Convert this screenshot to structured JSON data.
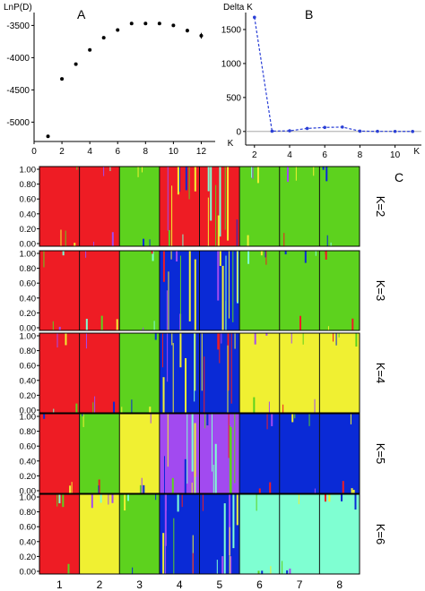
{
  "panel_labels": {
    "a": "A",
    "b": "B",
    "c": "C"
  },
  "colors": {
    "red": "#ee1c24",
    "green": "#5dd21e",
    "blue": "#0a2ad6",
    "yellow": "#f0f032",
    "purple": "#a24af0",
    "aqua": "#7fffd2",
    "axis": "#000000",
    "dk_line": "#2a3fd6",
    "zero_line": "#9a9a9a"
  },
  "chart_data": [
    {
      "type": "scatter",
      "panel": "A",
      "ylabel": "LnP(D)",
      "xlabel": "K",
      "xlim": [
        0,
        13
      ],
      "ylim": [
        -5300,
        -3300
      ],
      "x_ticks": [
        0,
        2,
        4,
        6,
        8,
        10,
        12
      ],
      "y_ticks": [
        -3500,
        -4000,
        -4500,
        -5000
      ],
      "x": [
        1,
        2,
        3,
        4,
        5,
        6,
        7,
        8,
        9,
        10,
        11,
        12
      ],
      "y": [
        -5220,
        -4330,
        -4100,
        -3880,
        -3690,
        -3570,
        -3470,
        -3470,
        -3470,
        -3500,
        -3580,
        -3660
      ],
      "error": [
        0,
        0,
        0,
        0,
        0,
        0,
        0,
        0,
        0,
        15,
        30,
        45
      ]
    },
    {
      "type": "line",
      "panel": "B",
      "ylabel": "Delta K",
      "xlabel": "K",
      "xlim": [
        1.5,
        11.5
      ],
      "ylim": [
        -200,
        1750
      ],
      "x_ticks": [
        2,
        4,
        6,
        8,
        10
      ],
      "y_ticks": [
        0,
        500,
        1000,
        1500
      ],
      "x": [
        2,
        3,
        4,
        5,
        6,
        7,
        8,
        9,
        10,
        11
      ],
      "y": [
        1680,
        5,
        10,
        45,
        60,
        65,
        5,
        2,
        1,
        0
      ]
    },
    {
      "type": "bar",
      "panel": "C",
      "subtype": "stacked-admixture",
      "y_ticks": [
        "1.00",
        "0.80",
        "0.60",
        "0.40",
        "0.20",
        "0.00"
      ],
      "populations": [
        "1",
        "2",
        "3",
        "4",
        "5",
        "6",
        "7",
        "8"
      ],
      "rows": [
        {
          "label": "K=2",
          "colors": [
            "red",
            "red",
            "green",
            "red",
            "red",
            "green",
            "green",
            "green"
          ]
        },
        {
          "label": "K=3",
          "colors": [
            "red",
            "red",
            "green",
            "blue",
            "blue",
            "green",
            "green",
            "green"
          ]
        },
        {
          "label": "K=4",
          "colors": [
            "red",
            "red",
            "green",
            "blue",
            "blue",
            "yellow",
            "yellow",
            "yellow"
          ]
        },
        {
          "label": "K=5",
          "colors": [
            "red",
            "green",
            "yellow",
            "purple",
            "purple",
            "blue",
            "blue",
            "blue"
          ]
        },
        {
          "label": "K=6",
          "colors": [
            "red",
            "yellow",
            "green",
            "blue",
            "blue",
            "aqua",
            "aqua",
            "aqua"
          ]
        }
      ]
    }
  ]
}
